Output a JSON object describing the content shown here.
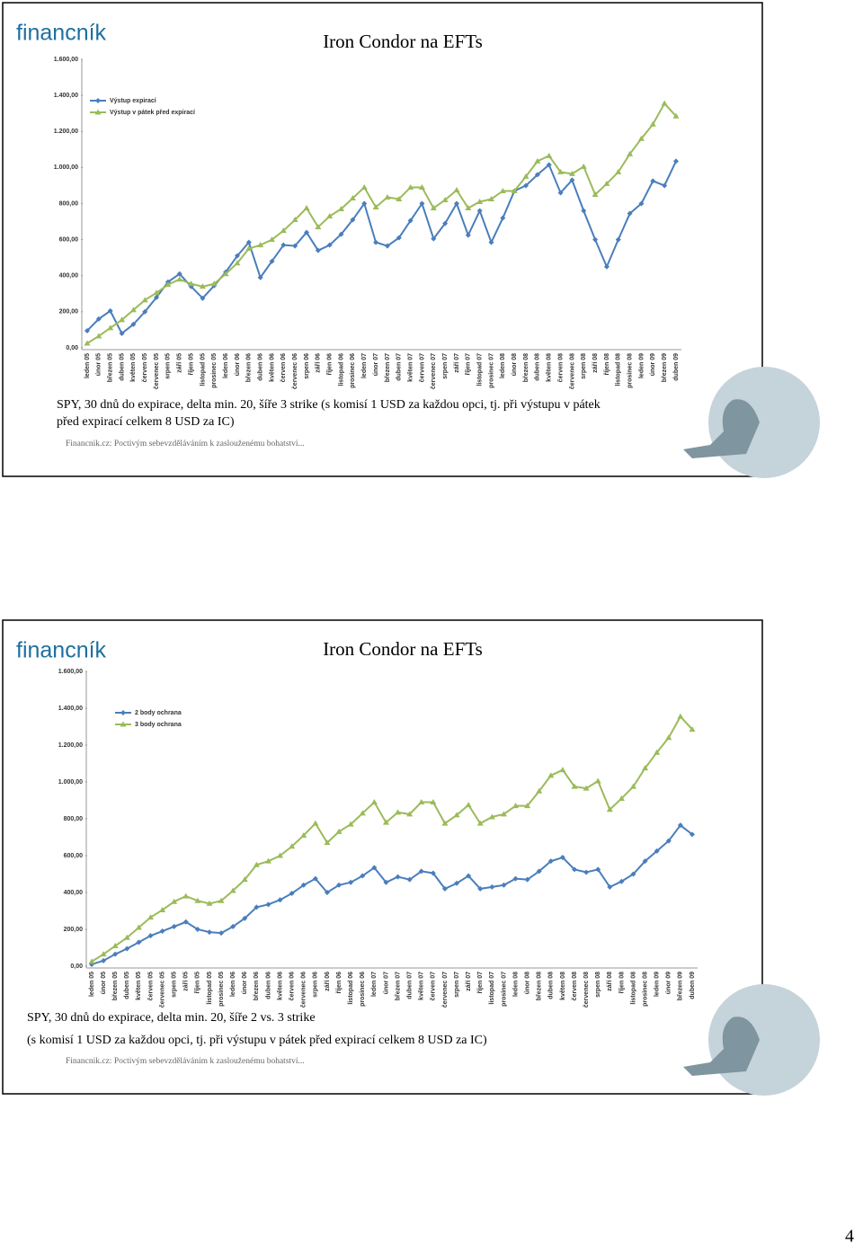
{
  "logo": "financník",
  "slides": [
    {
      "title": "Iron Condor na EFTs",
      "caption": [
        "SPY, 30 dnů do expirace, delta min. 20, šíře 3 strike (s komisí 1 USD za každou opci, tj. při výstupu v pátek",
        "před expirací celkem 8 USD za IC)"
      ],
      "footer": "Financnik.cz: Poctivým sebevzděláváním k zaslouženému bohatství..."
    },
    {
      "title": "Iron Condor na EFTs",
      "caption": [
        "SPY, 30 dnů do expirace, delta min. 20, šíře 2 vs. 3 strike",
        "(s komisí 1 USD za každou opci, tj. při výstupu v pátek před expirací celkem 8 USD za IC)"
      ],
      "footer": "Financnik.cz: Poctivým sebevzděláváním k zaslouženému bohatství..."
    }
  ],
  "page_number": 4,
  "chart_data": [
    {
      "type": "line",
      "categories": [
        "leden 05",
        "únor 05",
        "březen 05",
        "duben 05",
        "květen 05",
        "červen 05",
        "červenec 05",
        "srpen 05",
        "září 05",
        "říjen 05",
        "listopad 05",
        "prosinec 05",
        "leden 06",
        "únor 06",
        "březen 06",
        "duben 06",
        "květen 06",
        "červen 06",
        "červenec 06",
        "srpen 06",
        "září 06",
        "říjen 06",
        "listopad 06",
        "prosinec 06",
        "leden 07",
        "únor 07",
        "březen 07",
        "duben 07",
        "květen 07",
        "červen 07",
        "červenec 07",
        "srpen 07",
        "září 07",
        "říjen 07",
        "listopad 07",
        "prosinec 07",
        "leden 08",
        "únor 08",
        "březen 08",
        "duben 08",
        "květen 08",
        "červen 08",
        "červenec 08",
        "srpen 08",
        "září 08",
        "říjen 08",
        "listopad 08",
        "prosinec 08",
        "leden 09",
        "únor 09",
        "březen 09",
        "duben 09"
      ],
      "series": [
        {
          "name": "Výstup expirací",
          "color": "#4a7ebb",
          "marker": "diamond",
          "values": [
            95,
            160,
            205,
            80,
            130,
            200,
            280,
            365,
            410,
            340,
            275,
            345,
            420,
            510,
            585,
            390,
            480,
            570,
            565,
            640,
            540,
            570,
            630,
            710,
            800,
            585,
            565,
            610,
            705,
            800,
            605,
            690,
            800,
            625,
            760,
            585,
            720,
            870,
            900,
            960,
            1015,
            860,
            930,
            760,
            600,
            450,
            600,
            745,
            800,
            925,
            900,
            1035
          ]
        },
        {
          "name": "Výstup v pátek před expirací",
          "color": "#9bbb59",
          "marker": "triangle",
          "values": [
            25,
            65,
            110,
            155,
            210,
            265,
            305,
            350,
            380,
            355,
            340,
            355,
            410,
            470,
            550,
            570,
            600,
            650,
            710,
            775,
            670,
            730,
            770,
            830,
            890,
            780,
            835,
            825,
            890,
            890,
            775,
            820,
            875,
            775,
            810,
            825,
            870,
            870,
            950,
            1035,
            1065,
            975,
            965,
            1005,
            850,
            910,
            975,
            1075,
            1160,
            1240,
            1355,
            1285
          ]
        }
      ],
      "ylim": [
        0,
        1600
      ],
      "yticks": [
        {
          "value": 0,
          "label": "0,00"
        },
        {
          "value": 200,
          "label": "200,00"
        },
        {
          "value": 400,
          "label": "400,00"
        },
        {
          "value": 600,
          "label": "600,00"
        },
        {
          "value": 800,
          "label": "800,00"
        },
        {
          "value": 1000,
          "label": "1.000,00"
        },
        {
          "value": 1200,
          "label": "1.200,00"
        },
        {
          "value": 1400,
          "label": "1.400,00"
        },
        {
          "value": 1600,
          "label": "1.600,00"
        }
      ],
      "grid": false
    },
    {
      "type": "line",
      "categories": [
        "leden 05",
        "únor 05",
        "březen 05",
        "duben 05",
        "květen 05",
        "červen 05",
        "červenec 05",
        "srpen 05",
        "září 05",
        "říjen 05",
        "listopad 05",
        "prosinec 05",
        "leden 06",
        "únor 06",
        "březen 06",
        "duben 06",
        "květen 06",
        "červen 06",
        "červenec 06",
        "srpen 06",
        "září 06",
        "říjen 06",
        "listopad 06",
        "prosinec 06",
        "leden 07",
        "únor 07",
        "březen 07",
        "duben 07",
        "květen 07",
        "červen 07",
        "červenec 07",
        "srpen 07",
        "září 07",
        "říjen 07",
        "listopad 07",
        "prosinec 07",
        "leden 08",
        "únor 08",
        "březen 08",
        "duben 08",
        "květen 08",
        "červen 08",
        "červenec 08",
        "srpen 08",
        "září 08",
        "říjen 08",
        "listopad 08",
        "prosinec 08",
        "leden 09",
        "únor 09",
        "březen 09",
        "duben 09"
      ],
      "series": [
        {
          "name": "2 body ochrana",
          "color": "#4a7ebb",
          "marker": "diamond",
          "values": [
            10,
            30,
            65,
            95,
            130,
            165,
            190,
            215,
            240,
            200,
            185,
            180,
            215,
            260,
            320,
            335,
            360,
            395,
            440,
            475,
            400,
            440,
            455,
            490,
            535,
            455,
            485,
            470,
            515,
            505,
            420,
            450,
            490,
            420,
            430,
            440,
            475,
            470,
            515,
            570,
            590,
            525,
            510,
            525,
            430,
            460,
            500,
            570,
            625,
            680,
            765,
            715
          ]
        },
        {
          "name": "3 body ochrana",
          "color": "#9bbb59",
          "marker": "triangle",
          "values": [
            25,
            65,
            110,
            155,
            210,
            265,
            305,
            350,
            380,
            355,
            340,
            355,
            410,
            470,
            550,
            570,
            600,
            650,
            710,
            775,
            670,
            730,
            770,
            830,
            890,
            780,
            835,
            825,
            890,
            890,
            775,
            820,
            875,
            775,
            810,
            825,
            870,
            870,
            950,
            1035,
            1065,
            975,
            965,
            1005,
            850,
            910,
            975,
            1075,
            1160,
            1240,
            1355,
            1285
          ]
        }
      ],
      "ylim": [
        0,
        1600
      ],
      "yticks": [
        {
          "value": 0,
          "label": "0,00"
        },
        {
          "value": 200,
          "label": "200,00"
        },
        {
          "value": 400,
          "label": "400,00"
        },
        {
          "value": 600,
          "label": "600,00"
        },
        {
          "value": 800,
          "label": "800,00"
        },
        {
          "value": 1000,
          "label": "1.000,00"
        },
        {
          "value": 1200,
          "label": "1.200,00"
        },
        {
          "value": 1400,
          "label": "1.400,00"
        },
        {
          "value": 1600,
          "label": "1.600,00"
        }
      ],
      "grid": false
    }
  ]
}
